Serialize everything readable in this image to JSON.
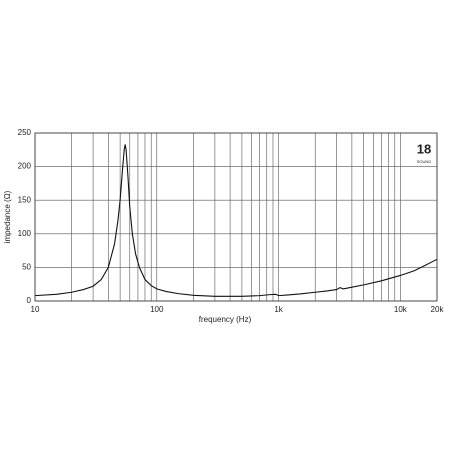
{
  "chart_data": {
    "type": "line",
    "xlabel": "frequency (Hz)",
    "ylabel": "impedance (Ω)",
    "logo": "18",
    "logo_sub": "SOUND",
    "xscale": "log",
    "grid": true,
    "xlim": [
      10,
      20000
    ],
    "ylim": [
      0,
      250
    ],
    "xticks": [
      10,
      100,
      {
        "value": 1000,
        "label": "1k"
      },
      {
        "value": 10000,
        "label": "10k"
      },
      {
        "value": 20000,
        "label": "20k"
      }
    ],
    "yticks": [
      0,
      50,
      100,
      150,
      200,
      250
    ],
    "xgrid": [
      20,
      30,
      40,
      50,
      60,
      70,
      80,
      90,
      200,
      300,
      400,
      500,
      600,
      700,
      800,
      900,
      2000,
      3000,
      4000,
      5000,
      6000,
      7000,
      8000,
      9000
    ],
    "x": [
      10,
      15,
      20,
      25,
      30,
      35,
      40,
      45,
      48,
      50,
      52,
      54,
      55,
      56,
      58,
      60,
      63,
      67,
      72,
      80,
      90,
      100,
      120,
      150,
      200,
      300,
      500,
      700,
      850,
      950,
      1000,
      1200,
      1500,
      2000,
      2500,
      3000,
      3200,
      3400,
      4000,
      5000,
      7000,
      10000,
      13000,
      16000,
      19000,
      20000
    ],
    "series": [
      {
        "color": "#111111",
        "values": [
          8,
          10,
          13,
          17,
          22,
          32,
          50,
          85,
          120,
          150,
          190,
          225,
          233,
          225,
          185,
          140,
          100,
          70,
          50,
          32,
          23,
          18,
          14,
          11,
          8.5,
          7,
          7,
          8,
          9.5,
          10,
          8,
          9,
          10.5,
          13,
          15,
          17,
          20,
          18,
          20.5,
          24,
          30,
          38,
          45,
          53,
          60,
          62
        ]
      }
    ]
  }
}
